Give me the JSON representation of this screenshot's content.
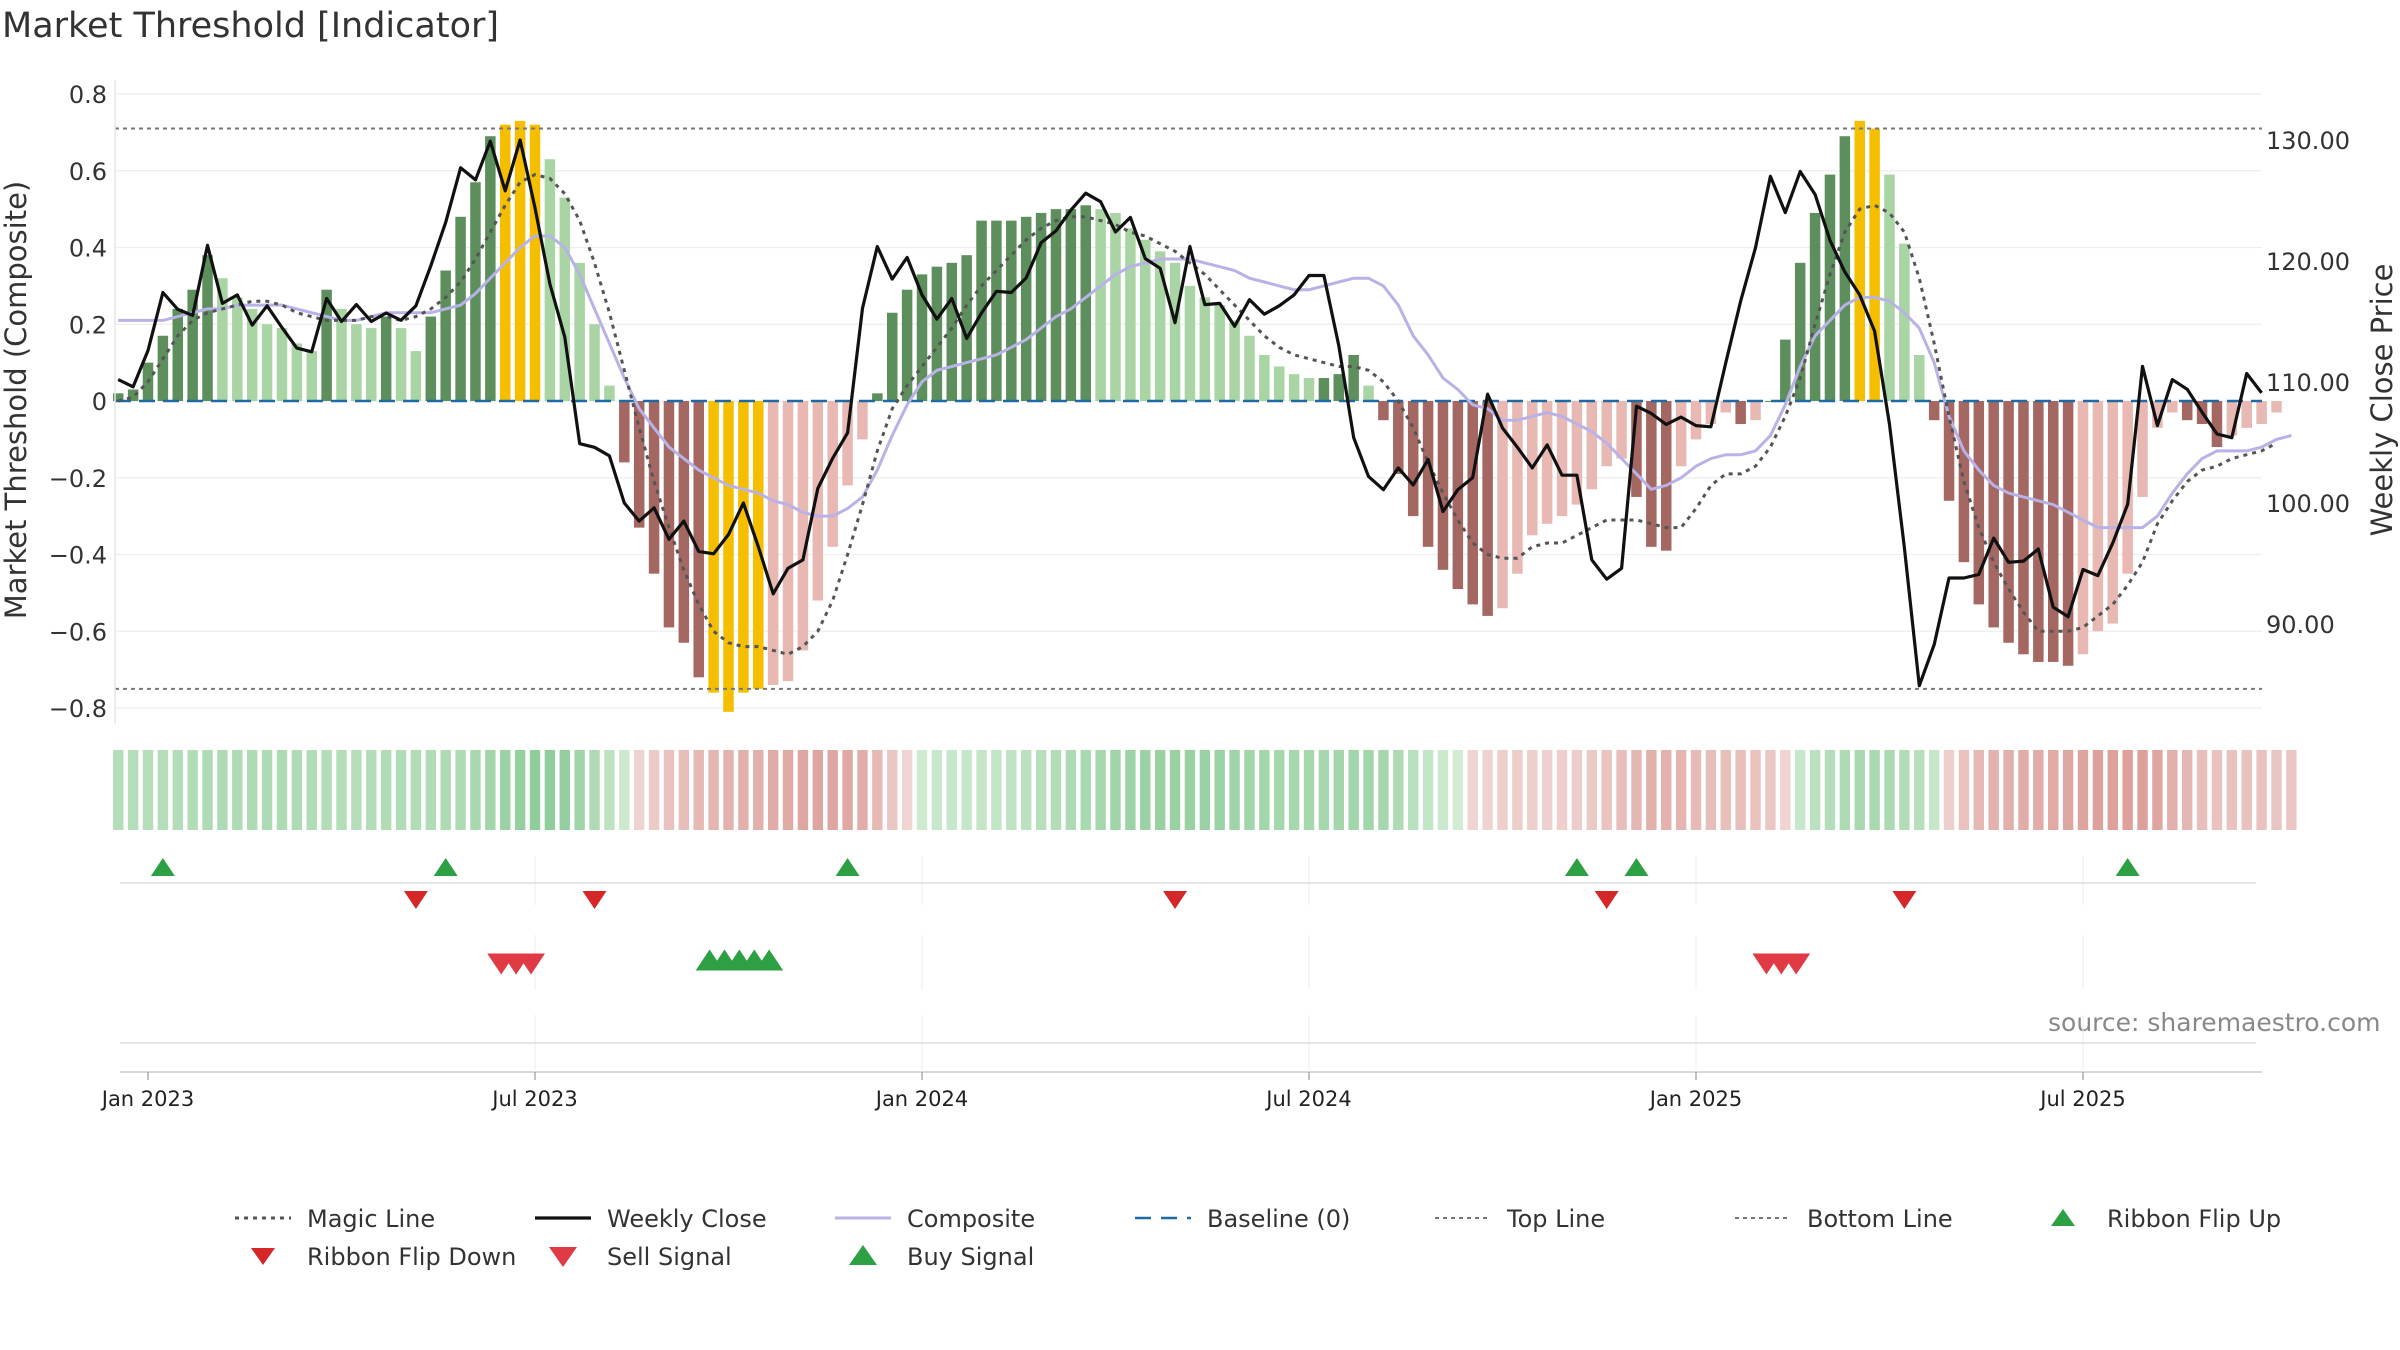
{
  "title": "Market Threshold [Indicator]",
  "source": "source: sharemaestro.com",
  "colors": {
    "magic": "#555555",
    "close": "#111111",
    "composite": "#b9b2e6",
    "baseline": "#1f6aa5",
    "topline": "#777777",
    "bottomline": "#777777",
    "buy": "#2ca043",
    "sell": "#e03a45",
    "flipdown": "#d62728",
    "gold": "#f5bf00",
    "green_dark": "#5c8f5c",
    "green_light": "#a9d4a4",
    "red_dark": "#a46762",
    "red_light": "#e8b8b3"
  },
  "chart_data": {
    "type": "bar",
    "x_labels": [
      "Jan 2023",
      "Jul 2023",
      "Jan 2024",
      "Jul 2024",
      "Jan 2025",
      "Jul 2025"
    ],
    "x_label_weeks": [
      0,
      26,
      52,
      78,
      104,
      130
    ],
    "left_axis": {
      "label": "Market Threshold (Composite)",
      "ylim": [
        -0.88,
        0.86
      ],
      "ticks": [
        "0.8",
        "0.6",
        "0.4",
        "0.2",
        "0",
        "−0.2",
        "−0.4",
        "−0.6",
        "−0.8"
      ],
      "tick_values": [
        0.8,
        0.6,
        0.4,
        0.2,
        0,
        -0.2,
        -0.4,
        -0.6,
        -0.8
      ]
    },
    "right_axis": {
      "label": "Weekly Close Price",
      "ticks": [
        "130.00",
        "120.00",
        "110.00",
        "100.00",
        "90.00"
      ],
      "tick_values": [
        130,
        120,
        110,
        100,
        90
      ]
    },
    "top_line": 0.71,
    "bottom_line": -0.75,
    "baseline": 0,
    "weeks_start": -2,
    "composite_bars": [
      0.02,
      0.03,
      0.1,
      0.17,
      0.24,
      0.29,
      0.38,
      0.32,
      0.27,
      0.24,
      0.2,
      0.19,
      0.15,
      0.13,
      0.29,
      0.24,
      0.2,
      0.19,
      0.22,
      0.19,
      0.13,
      0.22,
      0.34,
      0.48,
      0.57,
      0.69,
      0.72,
      0.73,
      0.72,
      0.63,
      0.53,
      0.36,
      0.2,
      0.04,
      -0.16,
      -0.33,
      -0.45,
      -0.59,
      -0.63,
      -0.72,
      -0.76,
      -0.81,
      -0.76,
      -0.75,
      -0.74,
      -0.73,
      -0.65,
      -0.52,
      -0.38,
      -0.22,
      -0.1,
      0.02,
      0.23,
      0.29,
      0.33,
      0.35,
      0.36,
      0.38,
      0.47,
      0.47,
      0.47,
      0.48,
      0.49,
      0.5,
      0.5,
      0.51,
      0.5,
      0.49,
      0.45,
      0.42,
      0.39,
      0.36,
      0.3,
      0.27,
      0.25,
      0.21,
      0.17,
      0.12,
      0.09,
      0.07,
      0.06,
      0.06,
      0.07,
      0.12,
      0.04,
      -0.05,
      -0.19,
      -0.3,
      -0.38,
      -0.44,
      -0.49,
      -0.53,
      -0.56,
      -0.54,
      -0.45,
      -0.35,
      -0.32,
      -0.3,
      -0.27,
      -0.23,
      -0.17,
      -0.15,
      -0.25,
      -0.38,
      -0.39,
      -0.17,
      -0.1,
      -0.06,
      -0.03,
      -0.06,
      -0.05,
      0.0,
      0.16,
      0.36,
      0.49,
      0.59,
      0.69,
      0.73,
      0.71,
      0.59,
      0.41,
      0.12,
      -0.05,
      -0.26,
      -0.42,
      -0.53,
      -0.59,
      -0.63,
      -0.66,
      -0.68,
      -0.68,
      -0.69,
      -0.66,
      -0.6,
      -0.58,
      -0.45,
      -0.25,
      -0.07,
      -0.03,
      -0.05,
      -0.06,
      -0.12,
      -0.09,
      -0.07,
      -0.06,
      -0.03
    ],
    "weekly_close": [
      110.2,
      109.6,
      112.6,
      117.4,
      116.0,
      115.5,
      121.3,
      116.5,
      117.2,
      114.7,
      116.3,
      114.5,
      112.8,
      112.5,
      116.9,
      115.0,
      116.4,
      115.0,
      115.7,
      115.1,
      116.3,
      119.6,
      123.2,
      127.7,
      126.7,
      129.9,
      125.8,
      130.0,
      124.4,
      118.1,
      113.7,
      104.9,
      104.6,
      103.9,
      100.0,
      98.5,
      99.6,
      97.0,
      98.5,
      96.0,
      95.8,
      97.4,
      100.0,
      96.4,
      92.5,
      94.6,
      95.3,
      101.2,
      103.7,
      105.8,
      116.1,
      121.2,
      118.5,
      120.3,
      117.2,
      115.2,
      116.9,
      113.6,
      115.7,
      117.5,
      117.4,
      118.6,
      121.5,
      122.5,
      124.2,
      125.6,
      124.9,
      122.4,
      123.6,
      120.2,
      119.4,
      114.9,
      121.2,
      116.4,
      116.5,
      114.6,
      116.8,
      115.6,
      116.3,
      117.2,
      118.8,
      118.8,
      113.0,
      105.4,
      102.2,
      101.1,
      102.9,
      101.5,
      103.6,
      99.3,
      101.1,
      102.1,
      109.0,
      106.2,
      104.6,
      102.9,
      104.8,
      102.3,
      102.3,
      95.3,
      93.7,
      94.6,
      108.0,
      107.4,
      106.5,
      107.1,
      106.4,
      106.3,
      111.6,
      116.7,
      121.1,
      127.0,
      124.0,
      127.4,
      125.5,
      121.7,
      119.1,
      117.2,
      114.2,
      106.5,
      96.3,
      84.9,
      88.3,
      93.8,
      93.8,
      94.1,
      97.1,
      95.1,
      95.2,
      96.2,
      91.4,
      90.6,
      94.5,
      94.0,
      96.7,
      99.9,
      111.3,
      106.4,
      110.2,
      109.4,
      107.5,
      105.7,
      105.4,
      110.7,
      109.1
    ],
    "magic_line": [
      0.0,
      0.01,
      0.05,
      0.11,
      0.17,
      0.21,
      0.23,
      0.24,
      0.25,
      0.26,
      0.26,
      0.25,
      0.23,
      0.22,
      0.21,
      0.21,
      0.21,
      0.22,
      0.22,
      0.21,
      0.22,
      0.24,
      0.27,
      0.31,
      0.37,
      0.44,
      0.51,
      0.57,
      0.59,
      0.58,
      0.54,
      0.47,
      0.36,
      0.23,
      0.08,
      -0.07,
      -0.21,
      -0.33,
      -0.44,
      -0.53,
      -0.6,
      -0.63,
      -0.64,
      -0.64,
      -0.65,
      -0.66,
      -0.64,
      -0.6,
      -0.52,
      -0.4,
      -0.27,
      -0.13,
      -0.02,
      0.04,
      0.09,
      0.14,
      0.19,
      0.25,
      0.3,
      0.34,
      0.38,
      0.42,
      0.45,
      0.47,
      0.48,
      0.48,
      0.47,
      0.46,
      0.44,
      0.43,
      0.41,
      0.39,
      0.36,
      0.33,
      0.29,
      0.25,
      0.21,
      0.17,
      0.14,
      0.12,
      0.11,
      0.1,
      0.09,
      0.09,
      0.08,
      0.05,
      0.0,
      -0.07,
      -0.16,
      -0.24,
      -0.31,
      -0.37,
      -0.4,
      -0.41,
      -0.41,
      -0.38,
      -0.37,
      -0.37,
      -0.35,
      -0.33,
      -0.31,
      -0.31,
      -0.31,
      -0.32,
      -0.33,
      -0.33,
      -0.28,
      -0.22,
      -0.19,
      -0.19,
      -0.17,
      -0.12,
      -0.04,
      0.06,
      0.2,
      0.33,
      0.44,
      0.5,
      0.51,
      0.49,
      0.44,
      0.32,
      0.15,
      -0.04,
      -0.21,
      -0.33,
      -0.42,
      -0.49,
      -0.55,
      -0.6,
      -0.6,
      -0.6,
      -0.59,
      -0.56,
      -0.53,
      -0.48,
      -0.42,
      -0.32,
      -0.26,
      -0.21,
      -0.18,
      -0.17,
      -0.15,
      -0.14,
      -0.13,
      -0.11
    ],
    "composite_line": [
      0.21,
      0.21,
      0.21,
      0.21,
      0.22,
      0.23,
      0.24,
      0.24,
      0.25,
      0.25,
      0.25,
      0.25,
      0.24,
      0.23,
      0.22,
      0.21,
      0.21,
      0.22,
      0.23,
      0.23,
      0.23,
      0.23,
      0.24,
      0.25,
      0.28,
      0.32,
      0.36,
      0.4,
      0.43,
      0.43,
      0.4,
      0.33,
      0.24,
      0.15,
      0.06,
      -0.02,
      -0.07,
      -0.12,
      -0.15,
      -0.18,
      -0.2,
      -0.22,
      -0.23,
      -0.24,
      -0.26,
      -0.27,
      -0.29,
      -0.3,
      -0.3,
      -0.28,
      -0.25,
      -0.18,
      -0.09,
      -0.01,
      0.05,
      0.08,
      0.09,
      0.1,
      0.11,
      0.12,
      0.14,
      0.16,
      0.19,
      0.22,
      0.24,
      0.27,
      0.3,
      0.33,
      0.35,
      0.36,
      0.37,
      0.37,
      0.37,
      0.36,
      0.35,
      0.34,
      0.32,
      0.31,
      0.3,
      0.29,
      0.29,
      0.3,
      0.31,
      0.32,
      0.32,
      0.3,
      0.25,
      0.17,
      0.12,
      0.06,
      0.03,
      -0.01,
      -0.02,
      -0.05,
      -0.05,
      -0.04,
      -0.03,
      -0.04,
      -0.06,
      -0.08,
      -0.11,
      -0.15,
      -0.19,
      -0.23,
      -0.22,
      -0.2,
      -0.17,
      -0.15,
      -0.14,
      -0.14,
      -0.13,
      -0.09,
      -0.01,
      0.09,
      0.17,
      0.21,
      0.25,
      0.27,
      0.27,
      0.26,
      0.23,
      0.19,
      0.1,
      -0.04,
      -0.13,
      -0.18,
      -0.22,
      -0.24,
      -0.25,
      -0.26,
      -0.27,
      -0.29,
      -0.31,
      -0.33,
      -0.33,
      -0.33,
      -0.33,
      -0.3,
      -0.24,
      -0.19,
      -0.15,
      -0.13,
      -0.13,
      -0.13,
      -0.12,
      -0.1,
      -0.09
    ],
    "ribbon_flip_up_weeks": [
      1,
      20,
      47,
      96,
      100,
      133
    ],
    "ribbon_flip_down_weeks": [
      18,
      30,
      69,
      98,
      118
    ],
    "sell_signal_weeks": [
      24,
      25,
      26,
      109,
      110,
      111
    ],
    "buy_signal_weeks": [
      38,
      39,
      40,
      41,
      42
    ],
    "legend": [
      {
        "label": "Magic Line",
        "kind": "dotline"
      },
      {
        "label": "Weekly Close",
        "kind": "solid"
      },
      {
        "label": "Composite",
        "kind": "composite"
      },
      {
        "label": "Baseline (0)",
        "kind": "dashed"
      },
      {
        "label": "Top Line",
        "kind": "thindots"
      },
      {
        "label": "Bottom Line",
        "kind": "thindots"
      },
      {
        "label": "Ribbon Flip Up",
        "kind": "tri-up-green"
      },
      {
        "label": "Ribbon Flip Down",
        "kind": "tri-down-red"
      },
      {
        "label": "Sell Signal",
        "kind": "tri-down-pink"
      },
      {
        "label": "Buy Signal",
        "kind": "tri-up-big"
      }
    ]
  }
}
